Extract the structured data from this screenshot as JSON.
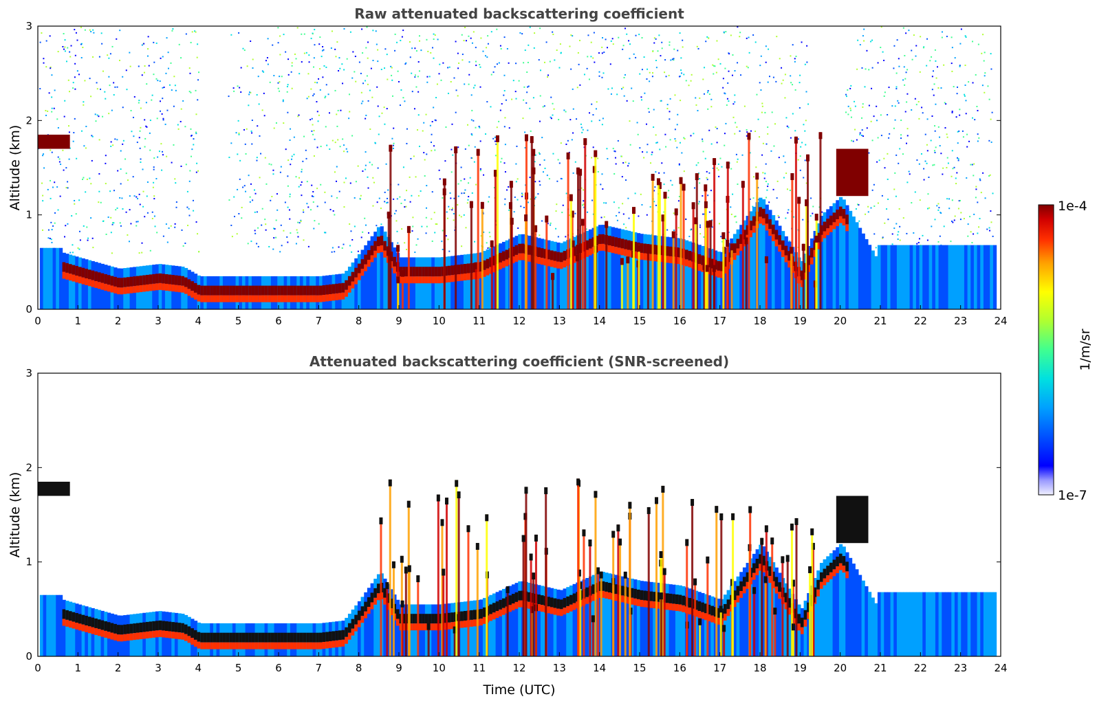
{
  "chart_data": [
    {
      "type": "heatmap",
      "title": "Raw attenuated backscattering coefficient",
      "xlabel": "",
      "ylabel": "Altitude (km)",
      "xlim": [
        0,
        24
      ],
      "ylim": [
        0,
        3
      ],
      "xticks": [
        "0",
        "1",
        "2",
        "3",
        "4",
        "5",
        "6",
        "7",
        "8",
        "9",
        "10",
        "11",
        "12",
        "13",
        "14",
        "15",
        "16",
        "17",
        "18",
        "19",
        "20",
        "21",
        "22",
        "23",
        "24"
      ],
      "yticks": [
        "0",
        "1",
        "2",
        "3"
      ],
      "colorscale": "log",
      "layers": [
        {
          "name": "boundary layer top",
          "time_h": [
            0.6,
            1,
            2,
            3,
            3.6,
            4,
            5,
            6,
            7,
            7.6,
            8,
            8.5,
            9,
            10,
            11,
            12,
            13,
            14,
            15,
            16,
            17,
            18,
            19,
            19.5,
            20,
            21
          ],
          "altitude_km": [
            0.5,
            0.45,
            0.33,
            0.38,
            0.35,
            0.25,
            0.25,
            0.25,
            0.25,
            0.28,
            0.5,
            0.8,
            0.45,
            0.45,
            0.5,
            0.7,
            0.6,
            0.8,
            0.7,
            0.65,
            0.5,
            1.1,
            0.4,
            0.9,
            1.1,
            0.35
          ]
        },
        {
          "name": "cloud",
          "time_h": [
            0,
            0.8
          ],
          "altitude_km": [
            1.7,
            1.85
          ]
        },
        {
          "name": "cloud",
          "time_h": [
            19.9,
            20.7
          ],
          "altitude_km": [
            1.2,
            1.7
          ]
        }
      ]
    },
    {
      "type": "heatmap",
      "title": "Attenuated backscattering coefficient (SNR-screened)",
      "xlabel": "Time (UTC)",
      "ylabel": "Altitude (km)",
      "xlim": [
        0,
        24
      ],
      "ylim": [
        0,
        3
      ],
      "xticks": [
        "0",
        "1",
        "2",
        "3",
        "4",
        "5",
        "6",
        "7",
        "8",
        "9",
        "10",
        "11",
        "12",
        "13",
        "14",
        "15",
        "16",
        "17",
        "18",
        "19",
        "20",
        "21",
        "22",
        "23",
        "24"
      ],
      "yticks": [
        "0",
        "1",
        "2",
        "3"
      ],
      "colorscale": "log"
    }
  ],
  "colorbar": {
    "max_label": "1e-4",
    "min_label": "1e-7",
    "label": "1/m/sr",
    "colors": [
      "#f0f0ff",
      "#9999ff",
      "#0000ff",
      "#0050ff",
      "#00a0ff",
      "#00e0e0",
      "#40ff90",
      "#b0ff30",
      "#ffff00",
      "#ffa000",
      "#ff3000",
      "#d00000",
      "#800000"
    ]
  }
}
